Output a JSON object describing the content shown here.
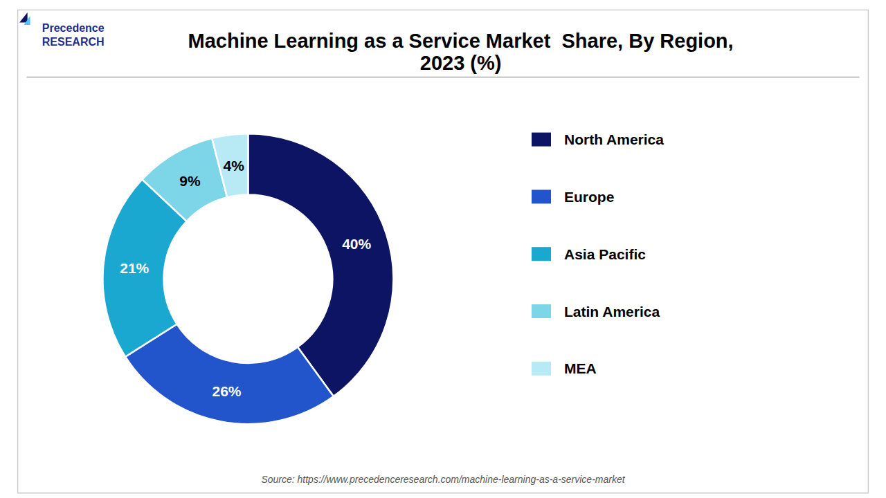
{
  "chart_data": {
    "type": "pie",
    "title": "Machine Learning as a Service Market  Share, By Region,\n2023 (%)",
    "categories": [
      "North America",
      "Europe",
      "Asia Pacific",
      "Latin America",
      "MEA"
    ],
    "values": [
      40,
      26,
      21,
      9,
      4
    ],
    "value_labels": [
      "40%",
      "26%",
      "21%",
      "9%",
      "4%"
    ],
    "data_labels": true,
    "colors": [
      "#0d1463",
      "#2255cc",
      "#1aa8d0",
      "#7dd6e8",
      "#b8eaf5"
    ],
    "legend": "right",
    "annotations": [
      "Precedence\nRESEARCH",
      "Source: https://www.precedenceresearch.com/machine-learning-as-a-service-market"
    ]
  }
}
